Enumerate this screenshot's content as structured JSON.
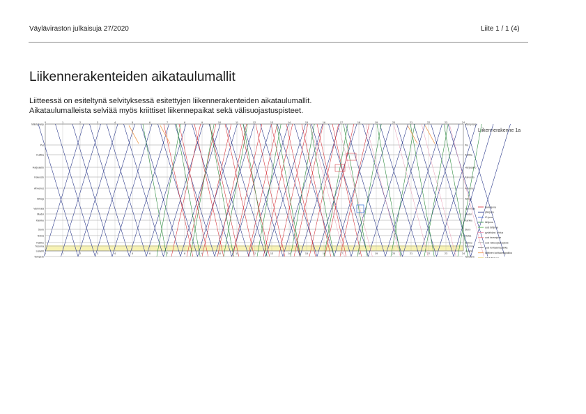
{
  "header": {
    "publication": "Väyläviraston julkaisuja 27/2020",
    "page_ref": "Liite 1 / 1 (4)"
  },
  "title": "Liikennerakenteiden aikataulumallit",
  "intro": [
    "Liitteessä on esiteltynä selvityksessä esitettyjen liikennerakenteiden aikataulumallit.",
    "Aikataulumalleista selviää myös kriittiset liikennepaikat sekä välisuojastuspisteet."
  ],
  "graph": {
    "structure_label": "Liikennerakenne 1a",
    "hours": [
      "0",
      "1",
      "2",
      "3",
      "4",
      "5",
      "6",
      "7",
      "8",
      "9",
      "10",
      "11",
      "12",
      "13",
      "14",
      "15",
      "16",
      "17",
      "18",
      "19",
      "20",
      "21",
      "22",
      "23",
      "24"
    ],
    "stations": [
      "Mäntyharju",
      "Pui",
      "Kuittila",
      "Harjuaalto",
      "Kaivosto",
      "Ahvenus",
      "Aittoja",
      "Vammala",
      "Madoi",
      "Karkku",
      "Siuro",
      "Nokia",
      "Kalkku",
      "Tesoma",
      "Lielahti",
      "Tampere"
    ],
    "colors": {
      "blue": "#33418f",
      "red": "#d8434a",
      "green": "#2a8a3c",
      "pink": "#ea9ab4",
      "orange": "#f0a15a",
      "yellow": "#f7f2b3"
    },
    "legend": [
      {
        "label": "tavarajuna",
        "color": "#d8434a"
      },
      {
        "label": "pikajuna",
        "color": "#33418f"
      },
      {
        "label": "IC-juna",
        "color": "#3a5fd0"
      },
      {
        "label": "lähijuna",
        "color": "#2a8a3c"
      },
      {
        "label": "uusi lähijuna",
        "color": "#6fbf6a"
      },
      {
        "label": "pysähdys / ohitus",
        "color": "#ea9ab4"
      },
      {
        "label": "uusi tavarajuna",
        "color": "#f07a7a"
      },
      {
        "label": "uusi välisuojastuspiste",
        "color": "#999999"
      },
      {
        "label": "uusi kohtaamispaikka",
        "color": "#777777"
      },
      {
        "label": "kriittinen kohtaamispaikka",
        "color": "#f0a15a"
      },
      {
        "label": "ratatyöikkuna",
        "color": "#e0c34a"
      }
    ]
  }
}
